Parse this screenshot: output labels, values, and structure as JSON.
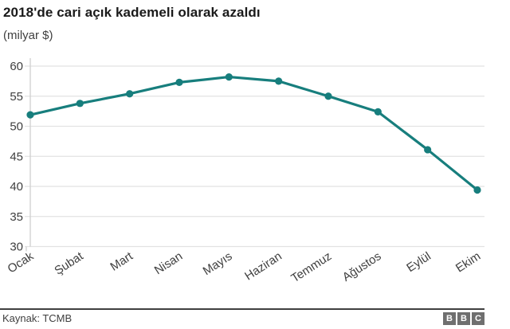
{
  "header": {
    "title": "2018'de cari açık kademeli olarak azaldı",
    "subtitle": "(milyar $)"
  },
  "chart_data": {
    "type": "line",
    "title": "2018'de cari açık kademeli olarak azaldı",
    "subtitle_unit": "(milyar $)",
    "categories": [
      "Ocak",
      "Şubat",
      "Mart",
      "Nisan",
      "Mayıs",
      "Haziran",
      "Temmuz",
      "Ağustos",
      "Eylül",
      "Ekim"
    ],
    "values": [
      51.9,
      53.8,
      55.4,
      57.3,
      58.2,
      57.5,
      55.0,
      52.4,
      46.1,
      39.4
    ],
    "xlabel": "",
    "ylabel": "milyar $",
    "ylim": [
      30,
      60
    ],
    "yticks": [
      30,
      35,
      40,
      45,
      50,
      55,
      60
    ],
    "grid": true,
    "legend": "none",
    "marker": "circle"
  },
  "colors": {
    "line": "#177e7d",
    "marker": "#177e7d",
    "gridline": "#e2e2e2",
    "axis": "#cfcfcf",
    "tick_label": "#404040",
    "title_text": "#1a1a1a",
    "footer_rule": "#404040",
    "logo_block": "#6f6f6f"
  },
  "footer": {
    "source_label": "Kaynak: TCMB",
    "logo_letters": [
      "B",
      "B",
      "C"
    ]
  }
}
